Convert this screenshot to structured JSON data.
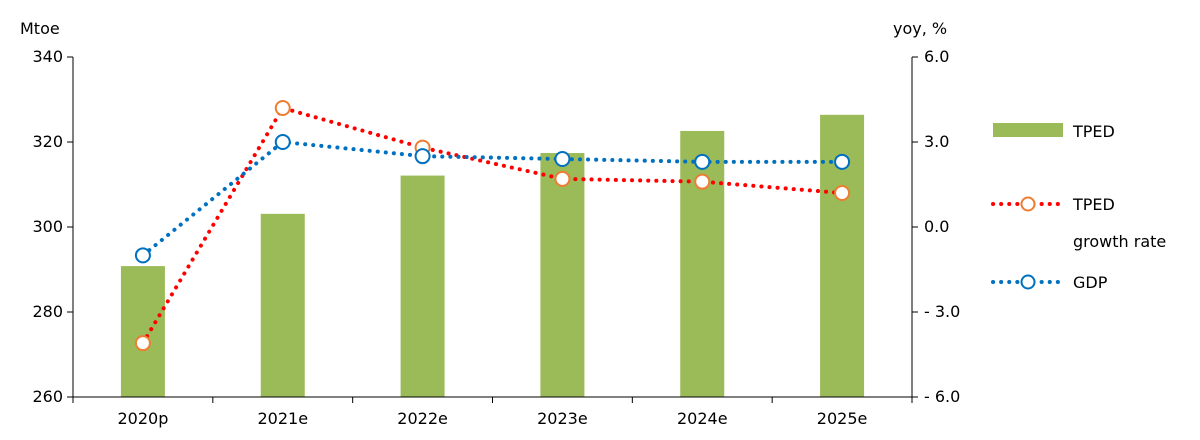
{
  "chart_data": {
    "type": "bar+line",
    "categories": [
      "2020p",
      "2021e",
      "2022e",
      "2023e",
      "2024e",
      "2025e"
    ],
    "left_axis": {
      "unit": "Mtoe",
      "ylim": [
        260,
        340
      ],
      "ticks": [
        260,
        280,
        300,
        320,
        340
      ]
    },
    "right_axis": {
      "unit": "yoy, %",
      "ylim": [
        -6,
        6
      ],
      "ticks": [
        "6.0",
        "3.0",
        "0.0",
        "- 3.0",
        "- 6.0"
      ],
      "tick_values": [
        6,
        3,
        0,
        -3,
        -6
      ]
    },
    "series": [
      {
        "name": "TPED",
        "kind": "bar",
        "axis": "left",
        "color": "#9bbb59",
        "values": [
          290.8,
          303.1,
          312.1,
          317.4,
          322.6,
          326.4
        ]
      },
      {
        "name": "TPED growth rate",
        "kind": "line",
        "axis": "right",
        "style": "dotted",
        "color": "#ff0000",
        "marker_edge": "#ed7d31",
        "values": [
          -4.1,
          4.2,
          2.8,
          1.7,
          1.6,
          1.2
        ]
      },
      {
        "name": "GDP",
        "kind": "line",
        "axis": "right",
        "style": "dotted",
        "color": "#0070c0",
        "marker_edge": "#0070c0",
        "values": [
          -1.0,
          3.0,
          2.5,
          2.4,
          2.3,
          2.3
        ]
      }
    ],
    "legend": {
      "position": "right",
      "items": [
        {
          "label_lines": [
            "TPED"
          ]
        },
        {
          "label_lines": [
            "TPED",
            "growth rate"
          ]
        },
        {
          "label_lines": [
            "GDP"
          ]
        }
      ]
    },
    "grid": false
  }
}
